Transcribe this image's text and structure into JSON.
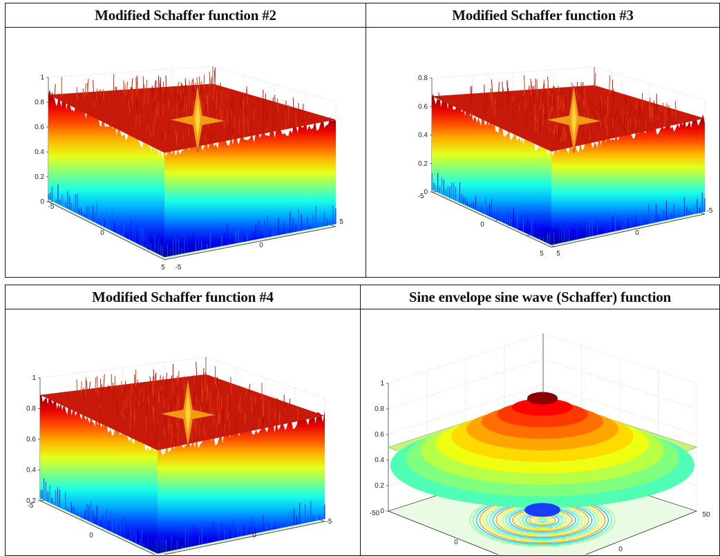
{
  "chart_data": [
    {
      "type": "surface",
      "title": "Modified Schaffer function #2",
      "zticks": [
        "0",
        "0.2",
        "0.4",
        "0.6",
        "0.8",
        "1"
      ],
      "xticks": [
        "-5",
        "0",
        "5"
      ],
      "yticks": [
        "-5",
        "0",
        "5"
      ],
      "zlim": [
        0,
        1
      ],
      "xlim": [
        -5,
        5
      ],
      "ylim": [
        -5,
        5
      ],
      "grid": true,
      "colormap": "jet"
    },
    {
      "type": "surface",
      "title": "Modified Schaffer function #3",
      "zticks": [
        "0",
        "0.2",
        "0.4",
        "0.6",
        "0.8"
      ],
      "xticks": [
        "-5",
        "0",
        "5"
      ],
      "yticks": [
        "5",
        "0",
        "-5"
      ],
      "zlim": [
        0,
        0.8
      ],
      "xlim": [
        -5,
        5
      ],
      "ylim": [
        -5,
        5
      ],
      "grid": true,
      "colormap": "jet"
    },
    {
      "type": "surface",
      "title": "Modified Schaffer function #4",
      "zticks": [
        "0.2",
        "0.4",
        "0.6",
        "0.8",
        "1"
      ],
      "xticks": [
        "-5",
        "0",
        "5"
      ],
      "yticks": [
        "5",
        "0",
        "-5"
      ],
      "zlim": [
        0.2,
        1
      ],
      "xlim": [
        -5,
        5
      ],
      "ylim": [
        -5,
        5
      ],
      "grid": true,
      "colormap": "jet"
    },
    {
      "type": "surface",
      "title": "Sine envelope sine wave (Schaffer) function",
      "zticks": [
        "0",
        "0.2",
        "0.4",
        "0.6",
        "0.8",
        "1"
      ],
      "xticks": [
        "-50",
        "0",
        "50"
      ],
      "yticks": [
        "-50",
        "0",
        "50"
      ],
      "zlim": [
        0,
        1
      ],
      "xlim": [
        -50,
        50
      ],
      "ylim": [
        -50,
        50
      ],
      "grid": true,
      "colormap": "jet"
    }
  ]
}
